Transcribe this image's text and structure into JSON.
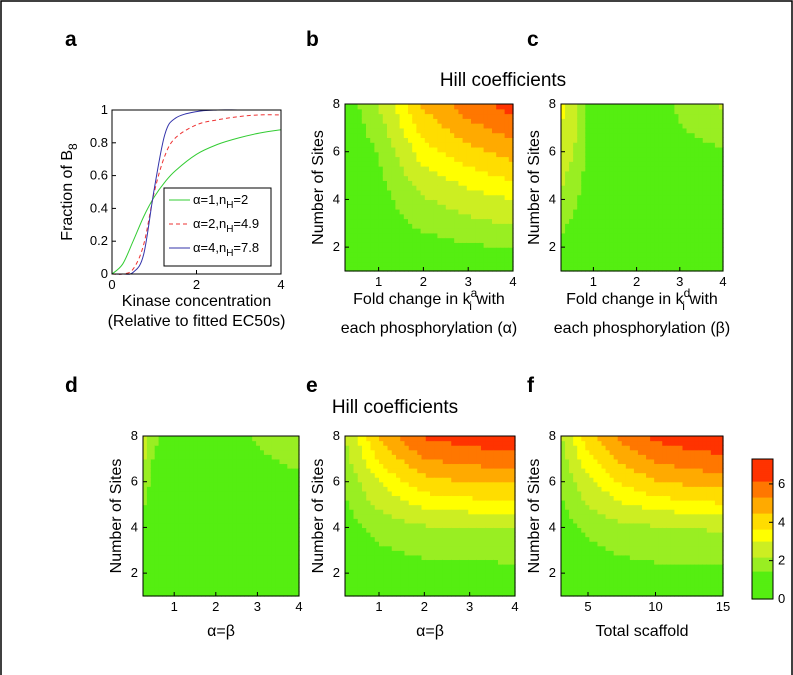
{
  "figure_border": true,
  "titles": {
    "top": "Hill coefficients",
    "bottom": "Hill coefficients"
  },
  "colorbar": {
    "ticks": [
      "0",
      "2",
      "4",
      "6"
    ],
    "colors": [
      "#55ee11",
      "#99ee22",
      "#ccee22",
      "#ffff00",
      "#ffdd00",
      "#ffaa00",
      "#ff7700",
      "#ff3300"
    ]
  },
  "chart_data": [
    {
      "id": "a",
      "type": "line",
      "panel_label": "a",
      "xlabel_lines": [
        "Kinase concentration",
        "(Relative to fitted EC50s)"
      ],
      "ylabel": "Fraction of B",
      "ylabel_sub": "8",
      "xlim": [
        0,
        4
      ],
      "ylim": [
        0,
        1
      ],
      "xticks": [
        "0",
        "2",
        "4"
      ],
      "yticks": [
        "0",
        "0.2",
        "0.4",
        "0.6",
        "0.8",
        "1"
      ],
      "series": [
        {
          "name": "α=1,n",
          "name_sub": "H",
          "name_tail": "=2",
          "color": "#33cc33",
          "style": "solid",
          "x": [
            0,
            0.25,
            0.5,
            0.75,
            1,
            1.25,
            1.5,
            2,
            2.5,
            3,
            3.5,
            4
          ],
          "y": [
            0,
            0.06,
            0.2,
            0.35,
            0.47,
            0.56,
            0.63,
            0.73,
            0.79,
            0.83,
            0.86,
            0.88
          ]
        },
        {
          "name": "α=2,n",
          "name_sub": "H",
          "name_tail": "=4.9",
          "color": "#ee3333",
          "style": "dashed",
          "x": [
            0,
            0.25,
            0.5,
            0.75,
            1,
            1.25,
            1.5,
            2,
            2.5,
            3,
            3.5,
            4
          ],
          "y": [
            0,
            0.0,
            0.03,
            0.18,
            0.5,
            0.72,
            0.83,
            0.91,
            0.94,
            0.96,
            0.97,
            0.97
          ]
        },
        {
          "name": "α=4,n",
          "name_sub": "H",
          "name_tail": "=7.8",
          "color": "#3333aa",
          "style": "solid",
          "x": [
            0,
            0.25,
            0.5,
            0.75,
            1,
            1.25,
            1.5,
            2,
            2.5,
            3,
            3.5,
            4
          ],
          "y": [
            0,
            0.0,
            0.01,
            0.12,
            0.52,
            0.85,
            0.95,
            0.99,
            1.0,
            1.0,
            1.0,
            1.0
          ]
        }
      ]
    },
    {
      "id": "b",
      "type": "heatmap",
      "panel_label": "b",
      "xlabel_lines": [
        "Fold change in k",
        "each phosphorylation (α)"
      ],
      "xlabel_k_sup": "a",
      "xlabel_k_sub": "i",
      "xlabel_tail": " with",
      "ylabel": "Number of Sites",
      "x_values": [
        0.25,
        1,
        2,
        3,
        4
      ],
      "y_values": [
        1,
        2,
        4,
        6,
        8
      ],
      "xlim": [
        0.25,
        4
      ],
      "ylim": [
        1,
        8
      ],
      "xticks": [
        1,
        2,
        3,
        4
      ],
      "yticks": [
        2,
        4,
        6,
        8
      ],
      "z": [
        [
          1.0,
          1.0,
          1.0,
          1.0,
          1.0
        ],
        [
          1.0,
          1.0,
          1.2,
          1.4,
          1.5
        ],
        [
          1.0,
          1.2,
          2.1,
          2.6,
          3.0
        ],
        [
          1.0,
          1.5,
          3.4,
          4.2,
          4.8
        ],
        [
          1.0,
          2.2,
          4.6,
          5.8,
          6.6
        ]
      ]
    },
    {
      "id": "c",
      "type": "heatmap",
      "panel_label": "c",
      "xlabel_lines": [
        "Fold change in k",
        "each phosphorylation (β)"
      ],
      "xlabel_k_sup": "d",
      "xlabel_k_sub": "i",
      "xlabel_tail": " with",
      "ylabel": "Number of Sites",
      "x_values": [
        0.25,
        0.5,
        1,
        2,
        3,
        4
      ],
      "y_values": [
        1,
        2,
        4,
        6,
        8
      ],
      "xlim": [
        0.25,
        4
      ],
      "ylim": [
        1,
        8
      ],
      "xticks": [
        1,
        2,
        3,
        4
      ],
      "yticks": [
        2,
        4,
        6,
        8
      ],
      "z": [
        [
          1.0,
          1.0,
          1.0,
          1.0,
          1.0,
          1.0
        ],
        [
          1.3,
          1.1,
          1.0,
          1.0,
          1.0,
          1.0
        ],
        [
          2.1,
          1.7,
          1.0,
          1.0,
          1.0,
          1.0
        ],
        [
          2.6,
          2.3,
          1.0,
          1.0,
          1.3,
          1.4
        ],
        [
          3.3,
          2.8,
          1.0,
          1.0,
          1.6,
          2.3
        ]
      ]
    },
    {
      "id": "d",
      "type": "heatmap",
      "panel_label": "d",
      "xlabel_lines": [
        "α=β"
      ],
      "ylabel": "Number of Sites",
      "x_values": [
        0.25,
        0.5,
        1,
        2,
        3,
        4
      ],
      "y_values": [
        1,
        2,
        4,
        6,
        8
      ],
      "xlim": [
        0.25,
        4
      ],
      "ylim": [
        1,
        8
      ],
      "xticks": [
        1,
        2,
        3,
        4
      ],
      "yticks": [
        2,
        4,
        6,
        8
      ],
      "z": [
        [
          1.0,
          1.0,
          1.0,
          1.0,
          1.0,
          1.0
        ],
        [
          1.0,
          1.0,
          1.0,
          1.0,
          1.0,
          1.0
        ],
        [
          1.1,
          1.0,
          1.0,
          1.0,
          1.0,
          1.0
        ],
        [
          2.0,
          1.2,
          1.0,
          1.0,
          1.1,
          1.3
        ],
        [
          2.7,
          1.7,
          1.0,
          1.0,
          1.6,
          2.1
        ]
      ]
    },
    {
      "id": "e",
      "type": "heatmap",
      "panel_label": "e",
      "xlabel_lines": [
        "α=β"
      ],
      "ylabel": "Number of Sites",
      "x_values": [
        0.25,
        1,
        2,
        3,
        4
      ],
      "y_values": [
        1,
        2,
        4,
        6,
        8
      ],
      "xlim": [
        0.25,
        4
      ],
      "ylim": [
        1,
        8
      ],
      "xticks": [
        1,
        2,
        3,
        4
      ],
      "yticks": [
        2,
        4,
        6,
        8
      ],
      "z": [
        [
          1.0,
          1.0,
          1.0,
          1.0,
          1.0
        ],
        [
          1.0,
          1.1,
          1.2,
          1.2,
          1.3
        ],
        [
          1.2,
          1.7,
          2.1,
          2.2,
          2.2
        ],
        [
          1.6,
          3.0,
          4.2,
          4.5,
          4.6
        ],
        [
          2.2,
          4.6,
          6.3,
          6.7,
          6.9
        ]
      ]
    },
    {
      "id": "f",
      "type": "heatmap",
      "panel_label": "f",
      "xlabel_lines": [
        "Total scaffold"
      ],
      "ylabel": "Number of Sites",
      "x_values": [
        3,
        5,
        7.5,
        10,
        12.5,
        15
      ],
      "y_values": [
        1,
        2,
        4,
        6,
        8
      ],
      "xlim": [
        3,
        15
      ],
      "ylim": [
        1,
        8
      ],
      "xticks": [
        5,
        10,
        15
      ],
      "yticks": [
        2,
        4,
        6,
        8
      ],
      "z": [
        [
          1.0,
          1.0,
          1.0,
          1.0,
          1.0,
          1.0
        ],
        [
          1.0,
          1.1,
          1.2,
          1.3,
          1.3,
          1.3
        ],
        [
          1.2,
          1.6,
          2.0,
          2.1,
          2.2,
          2.3
        ],
        [
          1.6,
          2.8,
          3.8,
          4.4,
          4.7,
          4.9
        ],
        [
          2.1,
          4.2,
          5.6,
          6.4,
          6.8,
          7.0
        ]
      ]
    }
  ]
}
